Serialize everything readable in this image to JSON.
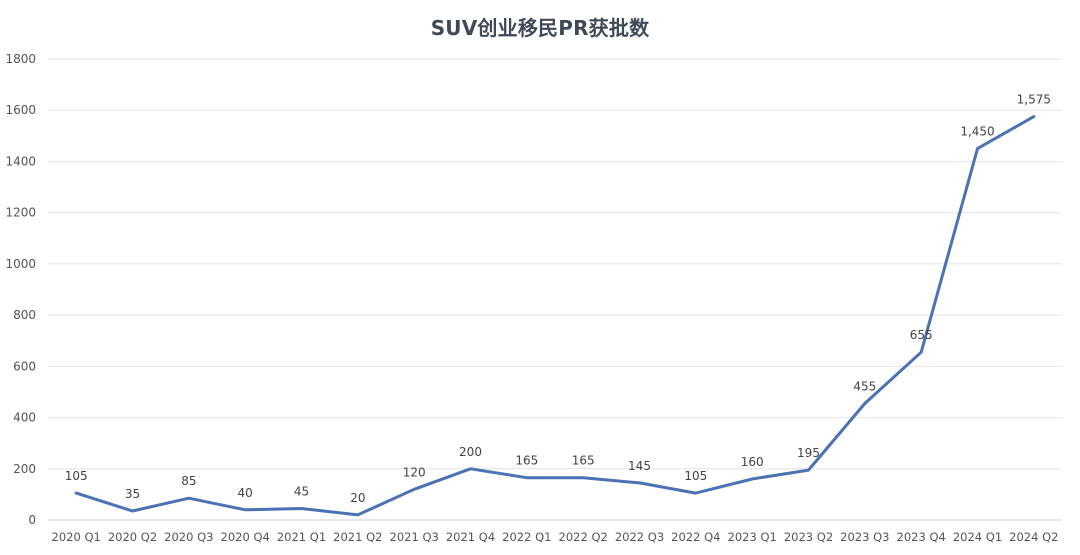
{
  "chart_data": {
    "type": "line",
    "title": "SUV创业移民PR获批数",
    "xlabel": "",
    "ylabel": "",
    "ylim": [
      0,
      1800
    ],
    "yticks": [
      0,
      200,
      400,
      600,
      800,
      1000,
      1200,
      1400,
      1600,
      1800
    ],
    "grid": true,
    "categories": [
      "2020 Q1",
      "2020 Q2",
      "2020 Q3",
      "2020 Q4",
      "2021 Q1",
      "2021 Q2",
      "2021 Q3",
      "2021 Q4",
      "2022 Q1",
      "2022 Q2",
      "2022 Q3",
      "2022 Q4",
      "2023 Q1",
      "2023 Q2",
      "2023 Q3",
      "2023 Q4",
      "2024 Q1",
      "2024 Q2"
    ],
    "values": [
      105,
      35,
      85,
      40,
      45,
      20,
      120,
      200,
      165,
      165,
      145,
      105,
      160,
      195,
      455,
      655,
      1450,
      1575
    ],
    "data_labels": [
      "105",
      "35",
      "85",
      "40",
      "45",
      "20",
      "120",
      "200",
      "165",
      "165",
      "145",
      "105",
      "160",
      "195",
      "455",
      "655",
      "1,450",
      "1,575"
    ],
    "line_color": "#4a72b5"
  }
}
